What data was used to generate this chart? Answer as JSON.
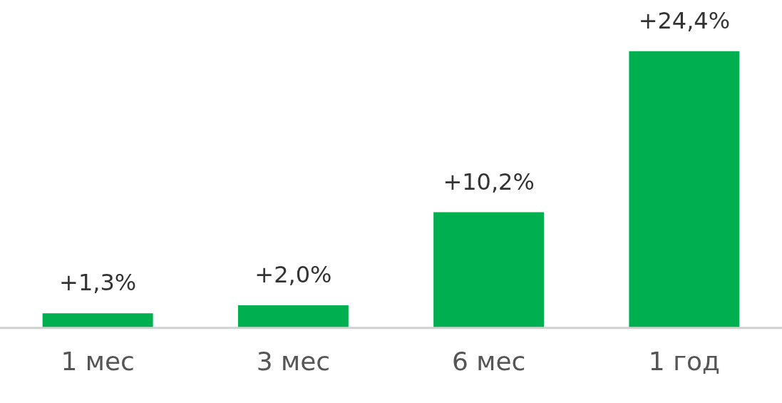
{
  "chart_data": {
    "type": "bar",
    "categories": [
      "1 мес",
      "3 мес",
      "6 мес",
      "1 год"
    ],
    "values": [
      1.3,
      2.0,
      10.2,
      24.4
    ],
    "value_labels": [
      "+1,3%",
      "+2,0%",
      "+10,2%",
      "+24,4%"
    ],
    "color": "#00b050",
    "grid": false,
    "legend": false
  }
}
